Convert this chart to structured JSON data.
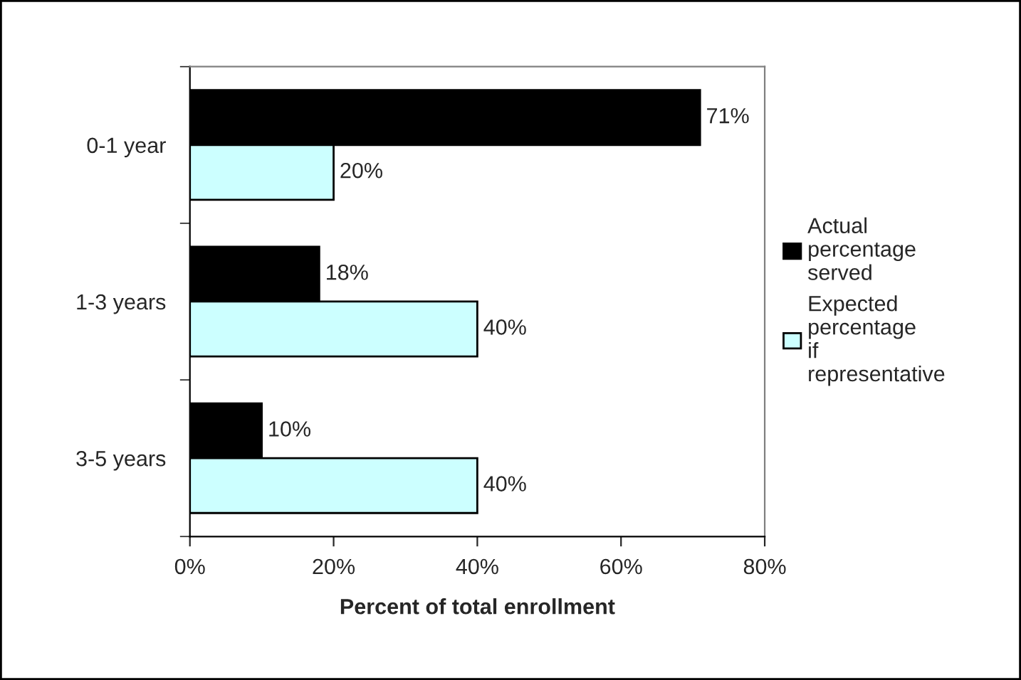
{
  "chart_data": {
    "type": "bar",
    "orientation": "horizontal",
    "xlabel": "Percent of total enrollment",
    "categories": [
      "0-1 year",
      "1-3 years",
      "3-5 years"
    ],
    "series": [
      {
        "name": "Actual percentage served",
        "color": "#000000",
        "values": [
          71,
          18,
          10
        ],
        "value_labels": [
          "71%",
          "18%",
          "10%"
        ]
      },
      {
        "name": "Expected percentage if representative",
        "color": "#ccffff",
        "values": [
          20,
          40,
          40
        ],
        "value_labels": [
          "20%",
          "40%",
          "40%"
        ]
      }
    ],
    "xlim": [
      0,
      80
    ],
    "xticks": [
      {
        "value": 0,
        "label": "0%"
      },
      {
        "value": 20,
        "label": "20%"
      },
      {
        "value": 40,
        "label": "40%"
      },
      {
        "value": 60,
        "label": "60%"
      },
      {
        "value": 80,
        "label": "80%"
      }
    ],
    "grid": false,
    "legend": "right"
  }
}
